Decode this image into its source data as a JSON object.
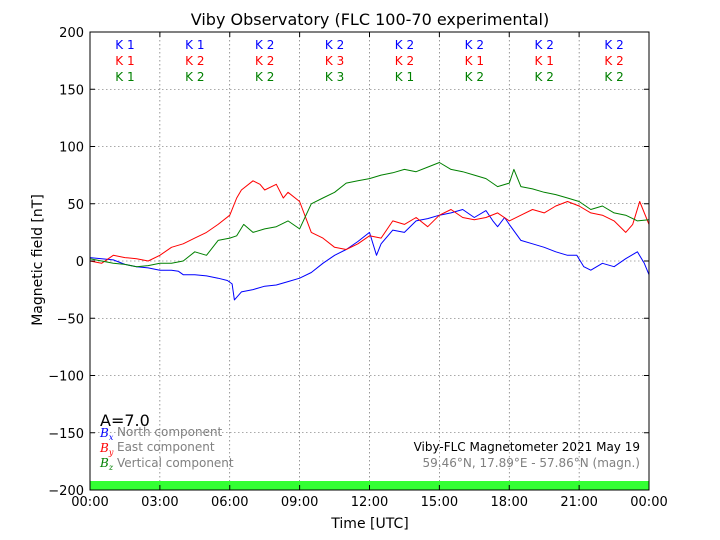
{
  "chart_data": {
    "type": "line",
    "title": "Viby Observatory (FLC 100-70 experimental)",
    "xlabel": "Time [UTC]",
    "ylabel": "Magnetic field [nT]",
    "xlim": [
      0,
      24
    ],
    "ylim": [
      -200,
      200
    ],
    "xticks": [
      0,
      3,
      6,
      9,
      12,
      15,
      18,
      21,
      24
    ],
    "xtick_labels": [
      "00:00",
      "03:00",
      "06:00",
      "09:00",
      "12:00",
      "15:00",
      "18:00",
      "21:00",
      "00:00"
    ],
    "yticks": [
      -200,
      -150,
      -100,
      -50,
      0,
      50,
      100,
      150,
      200
    ],
    "ytick_labels": [
      "−200",
      "−150",
      "−100",
      "−50",
      "0",
      "50",
      "100",
      "150",
      "200"
    ],
    "grid": true,
    "legend_position": "bottom-left",
    "series": [
      {
        "symbol": "B",
        "subscript": "x",
        "name": "North component",
        "color": "#0000ff",
        "x": [
          0,
          0.5,
          1,
          1.5,
          2,
          2.5,
          3,
          3.5,
          3.8,
          4,
          4.5,
          5,
          5.5,
          5.9,
          6.1,
          6.2,
          6.5,
          7,
          7.5,
          8,
          8.5,
          9,
          9.5,
          10,
          10.5,
          11,
          11.5,
          12,
          12.3,
          12.5,
          13,
          13.5,
          14,
          14.5,
          15,
          15.5,
          16,
          16.5,
          17,
          17.3,
          17.5,
          17.8,
          18,
          18.5,
          19,
          19.5,
          20,
          20.5,
          20.9,
          21.2,
          21.5,
          22,
          22.5,
          23,
          23.5,
          23.8,
          24
        ],
        "values": [
          3,
          2,
          1,
          -3,
          -5,
          -6,
          -8,
          -8,
          -9,
          -12,
          -12,
          -13,
          -15,
          -17,
          -20,
          -34,
          -27,
          -25,
          -22,
          -21,
          -18,
          -15,
          -10,
          -2,
          5,
          10,
          17,
          25,
          5,
          15,
          27,
          25,
          35,
          37,
          40,
          42,
          45,
          38,
          44,
          35,
          30,
          38,
          32,
          18,
          15,
          12,
          8,
          5,
          5,
          -5,
          -8,
          -2,
          -5,
          2,
          8,
          -2,
          -12
        ]
      },
      {
        "symbol": "B",
        "subscript": "y",
        "name": "East component",
        "color": "#ff0000",
        "x": [
          0,
          0.5,
          1,
          1.5,
          2,
          2.5,
          3,
          3.5,
          4,
          4.5,
          5,
          5.5,
          6,
          6.3,
          6.5,
          7,
          7.3,
          7.5,
          8,
          8.3,
          8.5,
          9,
          9.5,
          10,
          10.5,
          11,
          11.5,
          12,
          12.5,
          13,
          13.5,
          14,
          14.5,
          15,
          15.5,
          16,
          16.5,
          17,
          17.5,
          18,
          18.5,
          19,
          19.5,
          20,
          20.5,
          21,
          21.5,
          22,
          22.5,
          23,
          23.3,
          23.6,
          24
        ],
        "values": [
          0,
          -2,
          5,
          3,
          2,
          0,
          5,
          12,
          15,
          20,
          25,
          32,
          40,
          55,
          62,
          70,
          67,
          62,
          67,
          55,
          60,
          52,
          25,
          20,
          12,
          10,
          15,
          22,
          20,
          35,
          32,
          38,
          30,
          40,
          45,
          38,
          36,
          38,
          42,
          35,
          40,
          45,
          42,
          48,
          52,
          48,
          42,
          40,
          35,
          25,
          32,
          52,
          32
        ]
      },
      {
        "symbol": "B",
        "subscript": "z",
        "name": "Vertical component",
        "color": "#008000",
        "x": [
          0,
          0.5,
          1,
          1.5,
          2,
          2.5,
          3,
          3.5,
          4,
          4.5,
          5,
          5.5,
          6,
          6.3,
          6.6,
          7,
          7.5,
          8,
          8.5,
          9,
          9.5,
          10,
          10.5,
          11,
          11.5,
          12,
          12.5,
          13,
          13.5,
          14,
          14.5,
          15,
          15.5,
          16,
          16.5,
          17,
          17.5,
          18,
          18.2,
          18.5,
          19,
          19.5,
          20,
          20.5,
          21,
          21.5,
          22,
          22.5,
          23,
          23.5,
          24
        ],
        "values": [
          2,
          0,
          -2,
          -3,
          -5,
          -4,
          -2,
          -2,
          0,
          8,
          5,
          18,
          20,
          22,
          32,
          25,
          28,
          30,
          35,
          28,
          50,
          55,
          60,
          68,
          70,
          72,
          75,
          77,
          80,
          78,
          82,
          86,
          80,
          78,
          75,
          72,
          65,
          68,
          80,
          65,
          63,
          60,
          58,
          55,
          52,
          45,
          48,
          42,
          40,
          35,
          36
        ]
      }
    ],
    "k_index_rows": [
      {
        "color": "#0000ff",
        "labels": [
          "K 1",
          "K 1",
          "K 2",
          "K 2",
          "K 2",
          "K 2",
          "K 2",
          "K 2"
        ]
      },
      {
        "color": "#ff0000",
        "labels": [
          "K 1",
          "K 2",
          "K 2",
          "K 3",
          "K 2",
          "K 1",
          "K 1",
          "K 2"
        ]
      },
      {
        "color": "#008000",
        "labels": [
          "K 1",
          "K 2",
          "K 2",
          "K 3",
          "K 1",
          "K 2",
          "K 2",
          "K 2"
        ]
      }
    ],
    "a_index": "A=7.0",
    "station_info": {
      "line1": "Viby-FLC Magnetometer 2021 May 19",
      "line2": "59.46°N, 17.89°E - 57.86°N (magn.)"
    },
    "activity_bar_color": "#33ff33"
  }
}
